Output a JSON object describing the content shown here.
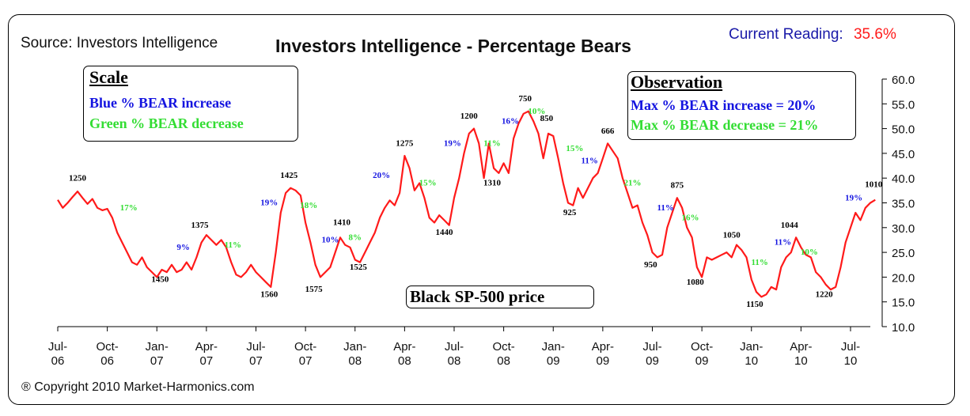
{
  "header": {
    "source": "Source: Investors Intelligence",
    "title": "Investors Intelligence - Percentage Bears",
    "current_label": "Current Reading:",
    "current_value": "35.6%"
  },
  "footer": {
    "copyright": "Copyright 2010 Market-Harmonics.com"
  },
  "scale_box": {
    "heading": "Scale",
    "blue_line": "Blue % BEAR increase",
    "green_line": "Green % BEAR decrease"
  },
  "observation_box": {
    "heading": "Observation",
    "max_increase": "Max % BEAR increase = 20%",
    "max_decrease": "Max % BEAR decrease = 21%"
  },
  "sp_box": {
    "label": "Black SP-500 price"
  },
  "colors": {
    "line": "#ff1a1a",
    "blue": "#1414e0",
    "green": "#33dd33",
    "price": "#000000"
  },
  "chart_data": {
    "type": "line",
    "title": "Investors Intelligence - Percentage Bears",
    "xlabel": "",
    "ylabel": "",
    "ylim": [
      10,
      60
    ],
    "y_ticks": [
      10,
      15,
      20,
      25,
      30,
      35,
      40,
      45,
      50,
      55,
      60
    ],
    "y_tick_labels": [
      "10.0",
      "15.0",
      "20.0",
      "25.0",
      "30.0",
      "35.0",
      "40.0",
      "45.0",
      "50.0",
      "55.0",
      "60.0"
    ],
    "x_range": [
      0,
      49
    ],
    "x_ticks": [
      {
        "x": 0,
        "label": [
          "Jul-",
          "06"
        ]
      },
      {
        "x": 3,
        "label": [
          "Oct-",
          "06"
        ]
      },
      {
        "x": 6,
        "label": [
          "Jan-",
          "07"
        ]
      },
      {
        "x": 9,
        "label": [
          "Apr-",
          "07"
        ]
      },
      {
        "x": 12,
        "label": [
          "Jul-",
          "07"
        ]
      },
      {
        "x": 15,
        "label": [
          "Oct-",
          "07"
        ]
      },
      {
        "x": 18,
        "label": [
          "Jan-",
          "08"
        ]
      },
      {
        "x": 21,
        "label": [
          "Apr-",
          "08"
        ]
      },
      {
        "x": 24,
        "label": [
          "Jul-",
          "08"
        ]
      },
      {
        "x": 27,
        "label": [
          "Oct-",
          "08"
        ]
      },
      {
        "x": 30,
        "label": [
          "Jan-",
          "09"
        ]
      },
      {
        "x": 33,
        "label": [
          "Apr-",
          "09"
        ]
      },
      {
        "x": 36,
        "label": [
          "Jul-",
          "09"
        ]
      },
      {
        "x": 39,
        "label": [
          "Oct-",
          "09"
        ]
      },
      {
        "x": 42,
        "label": [
          "Jan-",
          "10"
        ]
      },
      {
        "x": 45,
        "label": [
          "Apr-",
          "10"
        ]
      },
      {
        "x": 48,
        "label": [
          "Jul-",
          "10"
        ]
      }
    ],
    "series": [
      {
        "name": "Percentage Bears",
        "points": [
          [
            0.0,
            35.6
          ],
          [
            0.3,
            34.0
          ],
          [
            0.6,
            35.0
          ],
          [
            0.9,
            36.2
          ],
          [
            1.2,
            37.3
          ],
          [
            1.5,
            36.0
          ],
          [
            1.8,
            34.8
          ],
          [
            2.1,
            35.8
          ],
          [
            2.4,
            34.0
          ],
          [
            2.7,
            33.5
          ],
          [
            3.0,
            33.8
          ],
          [
            3.3,
            32.0
          ],
          [
            3.6,
            29.0
          ],
          [
            3.9,
            27.0
          ],
          [
            4.2,
            25.0
          ],
          [
            4.5,
            23.0
          ],
          [
            4.8,
            22.5
          ],
          [
            5.1,
            24.0
          ],
          [
            5.4,
            22.0
          ],
          [
            5.7,
            21.0
          ],
          [
            6.0,
            20.0
          ],
          [
            6.3,
            21.5
          ],
          [
            6.6,
            21.0
          ],
          [
            6.9,
            22.5
          ],
          [
            7.2,
            21.0
          ],
          [
            7.5,
            21.5
          ],
          [
            7.8,
            23.0
          ],
          [
            8.1,
            21.5
          ],
          [
            8.4,
            24.0
          ],
          [
            8.7,
            27.0
          ],
          [
            9.0,
            28.5
          ],
          [
            9.3,
            27.5
          ],
          [
            9.6,
            26.5
          ],
          [
            9.9,
            27.5
          ],
          [
            10.2,
            26.0
          ],
          [
            10.5,
            23.0
          ],
          [
            10.8,
            20.5
          ],
          [
            11.1,
            20.0
          ],
          [
            11.4,
            21.0
          ],
          [
            11.7,
            22.5
          ],
          [
            12.0,
            21.0
          ],
          [
            12.3,
            20.0
          ],
          [
            12.6,
            19.0
          ],
          [
            12.9,
            18.0
          ],
          [
            13.2,
            25.0
          ],
          [
            13.5,
            33.0
          ],
          [
            13.8,
            37.0
          ],
          [
            14.1,
            38.0
          ],
          [
            14.4,
            37.5
          ],
          [
            14.7,
            36.5
          ],
          [
            15.0,
            31.0
          ],
          [
            15.3,
            27.0
          ],
          [
            15.6,
            22.5
          ],
          [
            15.9,
            20.0
          ],
          [
            16.2,
            21.0
          ],
          [
            16.5,
            22.0
          ],
          [
            16.8,
            25.0
          ],
          [
            17.1,
            28.0
          ],
          [
            17.4,
            26.5
          ],
          [
            17.7,
            26.0
          ],
          [
            18.0,
            23.5
          ],
          [
            18.3,
            23.0
          ],
          [
            18.6,
            25.0
          ],
          [
            18.9,
            27.0
          ],
          [
            19.2,
            29.0
          ],
          [
            19.5,
            32.0
          ],
          [
            19.8,
            34.0
          ],
          [
            20.1,
            35.5
          ],
          [
            20.4,
            34.5
          ],
          [
            20.7,
            37.0
          ],
          [
            21.0,
            44.5
          ],
          [
            21.3,
            42.0
          ],
          [
            21.6,
            37.5
          ],
          [
            21.9,
            39.0
          ],
          [
            22.2,
            36.0
          ],
          [
            22.5,
            32.0
          ],
          [
            22.8,
            31.0
          ],
          [
            23.1,
            32.5
          ],
          [
            23.4,
            31.5
          ],
          [
            23.7,
            30.5
          ],
          [
            24.0,
            36.0
          ],
          [
            24.3,
            40.0
          ],
          [
            24.6,
            45.0
          ],
          [
            24.9,
            49.0
          ],
          [
            25.2,
            50.0
          ],
          [
            25.5,
            47.0
          ],
          [
            25.8,
            40.0
          ],
          [
            26.1,
            47.0
          ],
          [
            26.4,
            42.0
          ],
          [
            26.7,
            41.0
          ],
          [
            27.0,
            43.0
          ],
          [
            27.3,
            41.0
          ],
          [
            27.6,
            48.0
          ],
          [
            27.9,
            51.0
          ],
          [
            28.2,
            53.0
          ],
          [
            28.5,
            53.5
          ],
          [
            28.8,
            51.5
          ],
          [
            29.1,
            49.0
          ],
          [
            29.4,
            44.0
          ],
          [
            29.7,
            49.0
          ],
          [
            30.0,
            48.5
          ],
          [
            30.3,
            44.0
          ],
          [
            30.6,
            39.0
          ],
          [
            30.9,
            35.0
          ],
          [
            31.2,
            34.5
          ],
          [
            31.5,
            38.0
          ],
          [
            31.8,
            36.0
          ],
          [
            32.1,
            38.0
          ],
          [
            32.4,
            40.0
          ],
          [
            32.7,
            41.0
          ],
          [
            33.0,
            44.0
          ],
          [
            33.3,
            47.0
          ],
          [
            33.6,
            45.5
          ],
          [
            33.9,
            44.0
          ],
          [
            34.2,
            40.0
          ],
          [
            34.5,
            37.0
          ],
          [
            34.8,
            34.0
          ],
          [
            35.1,
            34.5
          ],
          [
            35.4,
            31.0
          ],
          [
            35.7,
            28.5
          ],
          [
            36.0,
            25.0
          ],
          [
            36.3,
            24.0
          ],
          [
            36.6,
            24.5
          ],
          [
            36.9,
            30.0
          ],
          [
            37.2,
            33.0
          ],
          [
            37.5,
            36.0
          ],
          [
            37.8,
            34.0
          ],
          [
            38.1,
            30.0
          ],
          [
            38.4,
            28.0
          ],
          [
            38.7,
            22.0
          ],
          [
            39.0,
            20.0
          ],
          [
            39.3,
            24.0
          ],
          [
            39.6,
            23.5
          ],
          [
            39.9,
            24.0
          ],
          [
            40.2,
            24.5
          ],
          [
            40.5,
            25.0
          ],
          [
            40.8,
            24.0
          ],
          [
            41.1,
            26.5
          ],
          [
            41.4,
            25.5
          ],
          [
            41.7,
            24.0
          ],
          [
            42.0,
            19.5
          ],
          [
            42.3,
            17.0
          ],
          [
            42.6,
            16.0
          ],
          [
            42.9,
            16.5
          ],
          [
            43.2,
            18.0
          ],
          [
            43.5,
            17.5
          ],
          [
            43.8,
            22.0
          ],
          [
            44.1,
            24.0
          ],
          [
            44.4,
            25.0
          ],
          [
            44.7,
            28.0
          ],
          [
            45.0,
            26.0
          ],
          [
            45.3,
            24.5
          ],
          [
            45.6,
            24.0
          ],
          [
            45.9,
            21.0
          ],
          [
            46.2,
            20.0
          ],
          [
            46.5,
            18.5
          ],
          [
            46.8,
            17.5
          ],
          [
            47.1,
            18.0
          ],
          [
            47.4,
            22.0
          ],
          [
            47.7,
            27.0
          ],
          [
            48.0,
            30.0
          ],
          [
            48.3,
            33.0
          ],
          [
            48.6,
            31.5
          ],
          [
            48.9,
            34.0
          ],
          [
            49.2,
            35.0
          ],
          [
            49.5,
            35.6
          ]
        ]
      }
    ],
    "price_annotations": [
      {
        "label": "1250",
        "x": 1.2,
        "y": 39.5
      },
      {
        "label": "1450",
        "x": 6.2,
        "y": 19.0
      },
      {
        "label": "1375",
        "x": 8.6,
        "y": 30.0
      },
      {
        "label": "1560",
        "x": 12.8,
        "y": 16.0
      },
      {
        "label": "1425",
        "x": 14.0,
        "y": 40.0
      },
      {
        "label": "1575",
        "x": 15.5,
        "y": 17.0
      },
      {
        "label": "1410",
        "x": 17.2,
        "y": 30.5
      },
      {
        "label": "1525",
        "x": 18.2,
        "y": 21.5
      },
      {
        "label": "1275",
        "x": 21.0,
        "y": 46.5
      },
      {
        "label": "1440",
        "x": 23.4,
        "y": 28.5
      },
      {
        "label": "1200",
        "x": 24.9,
        "y": 52.0
      },
      {
        "label": "1310",
        "x": 26.3,
        "y": 38.5
      },
      {
        "label": "750",
        "x": 28.3,
        "y": 55.5
      },
      {
        "label": "850",
        "x": 29.6,
        "y": 51.5
      },
      {
        "label": "925",
        "x": 31.0,
        "y": 32.5
      },
      {
        "label": "666",
        "x": 33.3,
        "y": 49.0
      },
      {
        "label": "875",
        "x": 37.5,
        "y": 38.0
      },
      {
        "label": "950",
        "x": 35.9,
        "y": 22.0
      },
      {
        "label": "1080",
        "x": 38.6,
        "y": 18.5
      },
      {
        "label": "1050",
        "x": 40.8,
        "y": 28.0
      },
      {
        "label": "1150",
        "x": 42.2,
        "y": 14.0
      },
      {
        "label": "1044",
        "x": 44.3,
        "y": 30.0
      },
      {
        "label": "1220",
        "x": 46.4,
        "y": 16.0
      },
      {
        "label": "1010",
        "x": 49.4,
        "y": 38.2
      }
    ],
    "percent_annotations": [
      {
        "label": "17%",
        "x": 4.3,
        "y": 33.5,
        "direction": "decrease"
      },
      {
        "label": "9%",
        "x": 7.6,
        "y": 25.5,
        "direction": "increase"
      },
      {
        "label": "11%",
        "x": 10.6,
        "y": 26.0,
        "direction": "decrease"
      },
      {
        "label": "19%",
        "x": 12.8,
        "y": 34.5,
        "direction": "increase"
      },
      {
        "label": "18%",
        "x": 15.2,
        "y": 34.0,
        "direction": "decrease"
      },
      {
        "label": "10%",
        "x": 16.5,
        "y": 27.0,
        "direction": "increase"
      },
      {
        "label": "8%",
        "x": 18.0,
        "y": 27.5,
        "direction": "decrease"
      },
      {
        "label": "20%",
        "x": 19.6,
        "y": 40.0,
        "direction": "increase"
      },
      {
        "label": "15%",
        "x": 22.4,
        "y": 38.5,
        "direction": "decrease"
      },
      {
        "label": "19%",
        "x": 23.9,
        "y": 46.5,
        "direction": "increase"
      },
      {
        "label": "11%",
        "x": 26.3,
        "y": 46.5,
        "direction": "decrease"
      },
      {
        "label": "16%",
        "x": 27.4,
        "y": 51.0,
        "direction": "increase"
      },
      {
        "label": "10%",
        "x": 29.0,
        "y": 53.0,
        "direction": "decrease"
      },
      {
        "label": "15%",
        "x": 31.3,
        "y": 45.5,
        "direction": "decrease"
      },
      {
        "label": "11%",
        "x": 32.2,
        "y": 43.0,
        "direction": "increase"
      },
      {
        "label": "21%",
        "x": 34.8,
        "y": 38.5,
        "direction": "decrease"
      },
      {
        "label": "11%",
        "x": 36.8,
        "y": 33.5,
        "direction": "increase"
      },
      {
        "label": "16%",
        "x": 38.3,
        "y": 31.5,
        "direction": "decrease"
      },
      {
        "label": "11%",
        "x": 42.5,
        "y": 22.5,
        "direction": "decrease"
      },
      {
        "label": "11%",
        "x": 43.9,
        "y": 26.5,
        "direction": "increase"
      },
      {
        "label": "10%",
        "x": 45.5,
        "y": 24.5,
        "direction": "decrease"
      },
      {
        "label": "19%",
        "x": 48.2,
        "y": 35.5,
        "direction": "increase"
      }
    ]
  }
}
